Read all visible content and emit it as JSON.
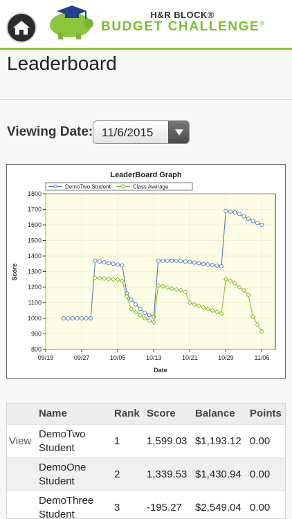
{
  "header": {
    "brand_top": "H&R BLOCK®",
    "brand_main": "BUDGET CHALLENGE",
    "brand_mark": "®",
    "home_icon": "home-icon",
    "logo_icon": "piggy-bank-grad-cap-icon",
    "accent_color": "#8cc63f"
  },
  "page": {
    "title": "Leaderboard"
  },
  "viewing": {
    "label": "Viewing Date:",
    "value": "11/6/2015"
  },
  "chart_data": {
    "type": "line",
    "title": "LeaderBoard Graph",
    "xlabel": "Date",
    "ylabel": "Score",
    "ylim": [
      800,
      1800
    ],
    "yticks": [
      800,
      900,
      1000,
      1100,
      1200,
      1300,
      1400,
      1500,
      1600,
      1700,
      1800
    ],
    "xticks": [
      "09/19",
      "09/27",
      "10/05",
      "10/13",
      "10/21",
      "10/29",
      "11/06"
    ],
    "legend_position": "top",
    "series": [
      {
        "name": "DemoTwo Student",
        "color": "#5577bb",
        "points": [
          [
            "09/23",
            1000
          ],
          [
            "09/24",
            1000
          ],
          [
            "09/25",
            1000
          ],
          [
            "09/26",
            1000
          ],
          [
            "09/27",
            1000
          ],
          [
            "09/28",
            1000
          ],
          [
            "09/29",
            1000
          ],
          [
            "09/30",
            1370
          ],
          [
            "10/01",
            1365
          ],
          [
            "10/02",
            1360
          ],
          [
            "10/03",
            1355
          ],
          [
            "10/04",
            1350
          ],
          [
            "10/05",
            1345
          ],
          [
            "10/06",
            1340
          ],
          [
            "10/07",
            1160
          ],
          [
            "10/08",
            1120
          ],
          [
            "10/09",
            1090
          ],
          [
            "10/10",
            1060
          ],
          [
            "10/11",
            1035
          ],
          [
            "10/12",
            1020
          ],
          [
            "10/13",
            1010
          ],
          [
            "10/14",
            1370
          ],
          [
            "10/15",
            1370
          ],
          [
            "10/16",
            1370
          ],
          [
            "10/17",
            1370
          ],
          [
            "10/18",
            1370
          ],
          [
            "10/19",
            1368
          ],
          [
            "10/20",
            1365
          ],
          [
            "10/21",
            1362
          ],
          [
            "10/22",
            1358
          ],
          [
            "10/23",
            1354
          ],
          [
            "10/24",
            1350
          ],
          [
            "10/25",
            1346
          ],
          [
            "10/26",
            1342
          ],
          [
            "10/27",
            1338
          ],
          [
            "10/28",
            1334
          ],
          [
            "10/29",
            1690
          ],
          [
            "10/30",
            1685
          ],
          [
            "10/31",
            1680
          ],
          [
            "11/01",
            1670
          ],
          [
            "11/02",
            1655
          ],
          [
            "11/03",
            1640
          ],
          [
            "11/04",
            1625
          ],
          [
            "11/05",
            1612
          ],
          [
            "11/06",
            1600
          ]
        ]
      },
      {
        "name": "Class Average",
        "color": "#88bb33",
        "points": [
          [
            "09/30",
            1260
          ],
          [
            "10/01",
            1258
          ],
          [
            "10/02",
            1255
          ],
          [
            "10/03",
            1252
          ],
          [
            "10/04",
            1250
          ],
          [
            "10/05",
            1248
          ],
          [
            "10/06",
            1240
          ],
          [
            "10/07",
            1140
          ],
          [
            "10/08",
            1060
          ],
          [
            "10/09",
            1040
          ],
          [
            "10/10",
            1020
          ],
          [
            "10/11",
            1000
          ],
          [
            "10/12",
            985
          ],
          [
            "10/13",
            975
          ],
          [
            "10/14",
            1210
          ],
          [
            "10/15",
            1205
          ],
          [
            "10/16",
            1198
          ],
          [
            "10/17",
            1190
          ],
          [
            "10/18",
            1185
          ],
          [
            "10/19",
            1180
          ],
          [
            "10/20",
            1170
          ],
          [
            "10/21",
            1100
          ],
          [
            "10/22",
            1090
          ],
          [
            "10/23",
            1080
          ],
          [
            "10/24",
            1070
          ],
          [
            "10/25",
            1060
          ],
          [
            "10/26",
            1050
          ],
          [
            "10/27",
            1040
          ],
          [
            "10/28",
            1030
          ],
          [
            "10/29",
            1250
          ],
          [
            "10/30",
            1240
          ],
          [
            "10/31",
            1225
          ],
          [
            "11/01",
            1200
          ],
          [
            "11/02",
            1180
          ],
          [
            "11/03",
            1150
          ],
          [
            "11/04",
            1010
          ],
          [
            "11/05",
            960
          ],
          [
            "11/06",
            915
          ]
        ]
      }
    ],
    "plot_background": "#fcfde4"
  },
  "table": {
    "headers": [
      "",
      "Name",
      "Rank",
      "Score",
      "Balance",
      "Points"
    ],
    "rows": [
      {
        "action": "View",
        "name_first": "DemoTwo",
        "name_last": "Student",
        "rank": "1",
        "score": "1,599.03",
        "balance": "$1,193.12",
        "points": "0.00"
      },
      {
        "action": "",
        "name_first": "DemoOne",
        "name_last": "Student",
        "rank": "2",
        "score": "1,339.53",
        "balance": "$1,430.94",
        "points": "0.00"
      },
      {
        "action": "",
        "name_first": "DemoThree",
        "name_last": "Student",
        "rank": "3",
        "score": "-195.27",
        "balance": "$2,549.04",
        "points": "0.00"
      }
    ]
  }
}
